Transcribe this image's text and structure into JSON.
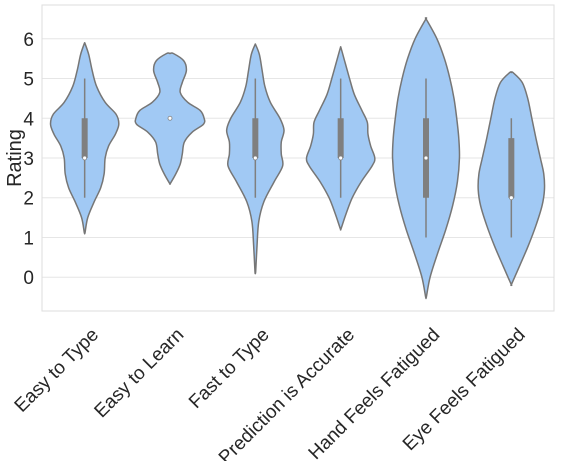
{
  "chart_data": {
    "type": "violin",
    "ylabel": "Rating",
    "xlabel": "",
    "ylim": [
      -0.85,
      6.85
    ],
    "yticks": [
      0,
      1,
      2,
      3,
      4,
      5,
      6
    ],
    "grid": true,
    "colors": {
      "violin_fill": "#a1c9f4",
      "violin_stroke": "#767676",
      "box": "#7f7f7f",
      "median": "#ffffff",
      "grid": "#e6e6e6",
      "frame": "#dddddd"
    },
    "categories": [
      {
        "name": "Easy to Type",
        "quartiles": [
          3,
          4
        ],
        "median": 3,
        "whiskers": [
          2,
          5
        ],
        "profile": [
          [
            1.12,
            0.01
          ],
          [
            1.5,
            0.09
          ],
          [
            1.9,
            0.28
          ],
          [
            2.25,
            0.47
          ],
          [
            2.6,
            0.57
          ],
          [
            3.0,
            0.6
          ],
          [
            3.3,
            0.7
          ],
          [
            3.6,
            0.9
          ],
          [
            3.85,
            1.0
          ],
          [
            4.1,
            0.92
          ],
          [
            4.4,
            0.6
          ],
          [
            4.8,
            0.35
          ],
          [
            5.2,
            0.22
          ],
          [
            5.6,
            0.12
          ],
          [
            5.88,
            0.01
          ]
        ]
      },
      {
        "name": "Easy to Learn",
        "quartiles": [
          4,
          4
        ],
        "median": 4,
        "whiskers": [
          4,
          4
        ],
        "profile": [
          [
            2.36,
            0.01
          ],
          [
            2.6,
            0.17
          ],
          [
            2.85,
            0.3
          ],
          [
            3.1,
            0.36
          ],
          [
            3.4,
            0.42
          ],
          [
            3.65,
            0.65
          ],
          [
            3.85,
            0.98
          ],
          [
            4.0,
            1.0
          ],
          [
            4.2,
            0.88
          ],
          [
            4.4,
            0.52
          ],
          [
            4.65,
            0.3
          ],
          [
            4.9,
            0.36
          ],
          [
            5.2,
            0.48
          ],
          [
            5.45,
            0.4
          ],
          [
            5.63,
            0.1
          ]
        ]
      },
      {
        "name": "Fast to Type",
        "quartiles": [
          3,
          4
        ],
        "median": 3,
        "whiskers": [
          2,
          5
        ],
        "profile": [
          [
            0.14,
            0.01
          ],
          [
            0.8,
            0.05
          ],
          [
            1.4,
            0.1
          ],
          [
            1.9,
            0.25
          ],
          [
            2.4,
            0.55
          ],
          [
            2.8,
            0.8
          ],
          [
            3.1,
            0.76
          ],
          [
            3.4,
            0.76
          ],
          [
            3.7,
            0.84
          ],
          [
            4.0,
            0.72
          ],
          [
            4.4,
            0.44
          ],
          [
            4.8,
            0.28
          ],
          [
            5.2,
            0.2
          ],
          [
            5.6,
            0.12
          ],
          [
            5.85,
            0.01
          ]
        ]
      },
      {
        "name": "Prediction is Accurate",
        "quartiles": [
          3,
          4
        ],
        "median": 3,
        "whiskers": [
          2,
          5
        ],
        "profile": [
          [
            1.22,
            0.01
          ],
          [
            1.6,
            0.16
          ],
          [
            2.0,
            0.34
          ],
          [
            2.4,
            0.6
          ],
          [
            2.8,
            0.92
          ],
          [
            3.0,
            1.0
          ],
          [
            3.3,
            0.88
          ],
          [
            3.6,
            0.8
          ],
          [
            3.9,
            0.78
          ],
          [
            4.2,
            0.62
          ],
          [
            4.6,
            0.4
          ],
          [
            5.0,
            0.26
          ],
          [
            5.4,
            0.13
          ],
          [
            5.77,
            0.01
          ]
        ]
      },
      {
        "name": "Hand Feels Fatigued",
        "quartiles": [
          2,
          4
        ],
        "median": 3,
        "whiskers": [
          1,
          5
        ],
        "profile": [
          [
            -0.5,
            0.01
          ],
          [
            0.0,
            0.12
          ],
          [
            0.6,
            0.34
          ],
          [
            1.2,
            0.58
          ],
          [
            1.8,
            0.78
          ],
          [
            2.4,
            0.92
          ],
          [
            3.0,
            0.98
          ],
          [
            3.5,
            0.96
          ],
          [
            4.0,
            0.9
          ],
          [
            4.5,
            0.82
          ],
          [
            5.0,
            0.7
          ],
          [
            5.5,
            0.54
          ],
          [
            6.0,
            0.32
          ],
          [
            6.49,
            0.01
          ]
        ]
      },
      {
        "name": "Eye Feels Fatigued",
        "quartiles": [
          2,
          3.5
        ],
        "median": 2,
        "whiskers": [
          1,
          4
        ],
        "profile": [
          [
            -0.17,
            0.01
          ],
          [
            0.3,
            0.25
          ],
          [
            0.8,
            0.5
          ],
          [
            1.3,
            0.72
          ],
          [
            1.8,
            0.9
          ],
          [
            2.2,
            0.97
          ],
          [
            2.6,
            0.95
          ],
          [
            3.0,
            0.85
          ],
          [
            3.5,
            0.72
          ],
          [
            4.0,
            0.6
          ],
          [
            4.5,
            0.48
          ],
          [
            4.9,
            0.32
          ],
          [
            5.15,
            0.05
          ]
        ]
      }
    ]
  }
}
